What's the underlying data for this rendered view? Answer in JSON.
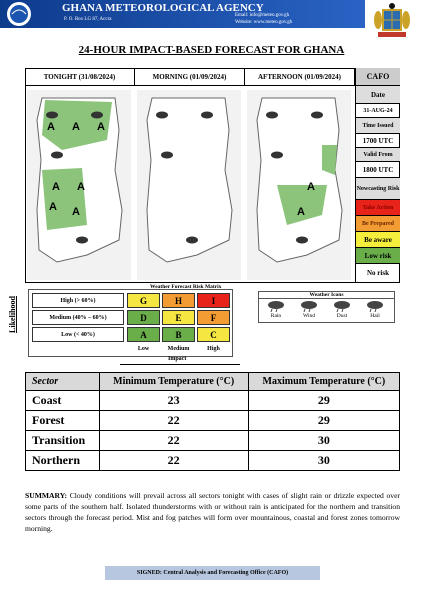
{
  "header": {
    "title": "GHANA METEOROLOGICAL AGENCY",
    "address": "P. O. Box LG 87, Accra",
    "email": "Email: info@meteo.gov.gh",
    "website": "Website: www.meteo.gov.gh"
  },
  "forecast_title": "24-HOUR IMPACT-BASED FORECAST FOR GHANA",
  "panels": [
    {
      "label": "TONIGHT (31/08/2024)",
      "markers": [
        "A",
        "A",
        "A",
        "A",
        "A",
        "A",
        "A"
      ]
    },
    {
      "label": "MORNING (01/09/2024)",
      "markers": []
    },
    {
      "label": "AFTERNOON (01/09/2024)",
      "markers": [
        "A",
        "A"
      ]
    }
  ],
  "cafo": {
    "title": "CAFO",
    "date_label": "Date",
    "date": "31-AUG-24",
    "time_issued_label": "Time Issued",
    "time_issued": "1700 UTC",
    "valid_from_label": "Valid From",
    "valid_from": "1800 UTC",
    "nowcasting_label": "Nowcasting Risk",
    "levels": [
      "Take Action",
      "Be Prepared",
      "Be aware",
      "Low risk",
      "No risk"
    ]
  },
  "matrix": {
    "title": "Weather Forecast Risk Matrix",
    "likelihood_label": "Likelihood",
    "impact_label": "Impact",
    "rows": [
      {
        "label": "High (> 60%)",
        "cells": [
          "G",
          "H",
          "I"
        ]
      },
      {
        "label": "Medium (40% – 60%)",
        "cells": [
          "D",
          "E",
          "F"
        ]
      },
      {
        "label": "Low (< 40%)",
        "cells": [
          "A",
          "B",
          "C"
        ]
      }
    ],
    "columns": [
      "Low",
      "Medium",
      "High"
    ]
  },
  "icons": {
    "title": "Weather Icons",
    "items": [
      "Rain",
      "Wind",
      "Dust",
      "Hail"
    ]
  },
  "table": {
    "headers": [
      "Sector",
      "Minimum Temperature (°C)",
      "Maximum Temperature (°C)"
    ],
    "rows": [
      [
        "Coast",
        "23",
        "29"
      ],
      [
        "Forest",
        "22",
        "29"
      ],
      [
        "Transition",
        "22",
        "30"
      ],
      [
        "Northern",
        "22",
        "30"
      ]
    ]
  },
  "summary": {
    "label": "SUMMARY:",
    "text": "Cloudy conditions will prevail across all sectors tonight with cases of slight rain or drizzle expected over some parts of the southern half. Isolated thunderstorms with or without rain is anticipated for the northern and transition sectors through the forecast period. Mist and fog patches will form over mountainous, coastal and forest zones tomorrow morning."
  },
  "signed": "SIGNED: Central Analysis and Forecasting Office (CAFO)"
}
